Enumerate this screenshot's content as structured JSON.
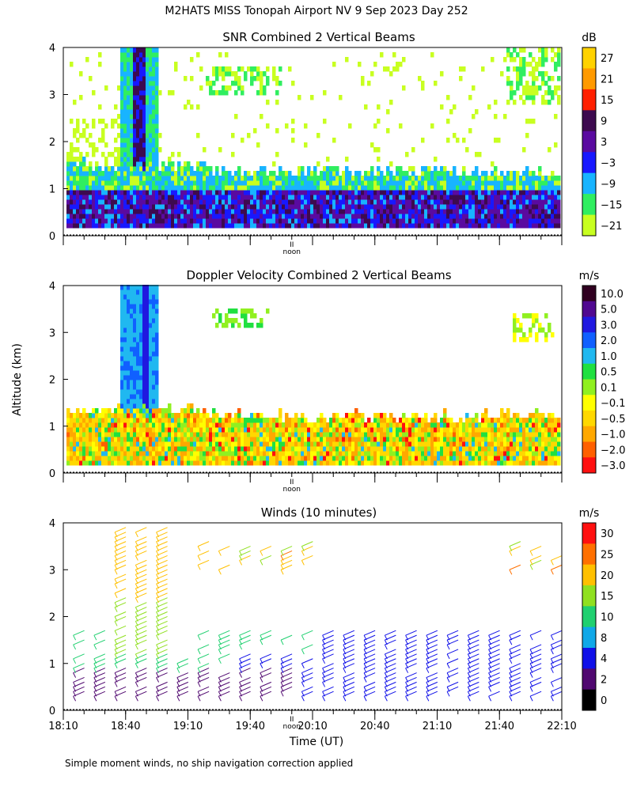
{
  "header": {
    "title": "M2HATS MISS Tonopah Airport NV   9 Sep 2023 Day 252"
  },
  "footer": {
    "note": "Simple moment winds, no ship navigation correction applied"
  },
  "shared": {
    "ylabel": "Altitude (km)",
    "xlabel": "Time (UT)",
    "noon_label": "noon",
    "time_ticks": [
      "18:10",
      "18:40",
      "19:10",
      "19:40",
      "20:10",
      "20:40",
      "21:10",
      "21:40",
      "22:10"
    ],
    "time_tick_hours": [
      18.1667,
      18.6667,
      19.1667,
      19.6667,
      20.1667,
      20.6667,
      21.1667,
      21.6667,
      22.1667
    ],
    "xlim_hours": [
      18.1667,
      22.1667
    ],
    "noon_hour": 20.0,
    "alt_ticks": [
      "0",
      "1",
      "2",
      "3",
      "4"
    ],
    "ylim_km": [
      0,
      4
    ]
  },
  "chart_data": [
    {
      "type": "heatmap",
      "title": "SNR Combined 2 Vertical Beams",
      "ylabel": "Altitude (km)",
      "ylim": [
        0,
        4
      ],
      "colorbar": {
        "unit": "dB",
        "labels": [
          "27",
          "21",
          "15",
          "9",
          "3",
          "−3",
          "−9",
          "−15",
          "−21"
        ],
        "colors": [
          "#ffd200",
          "#ff9a00",
          "#ff2000",
          "#3d0a4f",
          "#5a0aa0",
          "#1818ff",
          "#18b4ff",
          "#30ee60",
          "#c8ff20"
        ]
      }
    },
    {
      "type": "heatmap",
      "title": "Doppler Velocity Combined 2 Vertical Beams",
      "ylabel": "Altitude (km)",
      "ylim": [
        0,
        4
      ],
      "colorbar": {
        "unit": "m/s",
        "labels": [
          "10.0",
          "5.0",
          "3.0",
          "2.0",
          "1.0",
          "0.5",
          "0.1",
          "−0.1",
          "−0.5",
          "−1.0",
          "−2.0",
          "−3.0"
        ],
        "colors": [
          "#300020",
          "#500890",
          "#2018e0",
          "#1060ff",
          "#20b8f0",
          "#20e040",
          "#90f020",
          "#ffff00",
          "#ffd800",
          "#ffa800",
          "#ff6000",
          "#ff1010"
        ]
      }
    },
    {
      "type": "scatter",
      "title": "Winds (10 minutes)",
      "xlabel": "Time (UT)",
      "ylabel": "Altitude (km)",
      "ylim": [
        0,
        4
      ],
      "colorbar": {
        "unit": "m/s",
        "labels": [
          "30",
          "25",
          "20",
          "15",
          "10",
          "8",
          "4",
          "2",
          "0"
        ],
        "colors": [
          "#ff1010",
          "#ff7000",
          "#ffc000",
          "#90e020",
          "#20d070",
          "#10a8e8",
          "#1010e8",
          "#500870",
          "#000000"
        ]
      }
    }
  ]
}
